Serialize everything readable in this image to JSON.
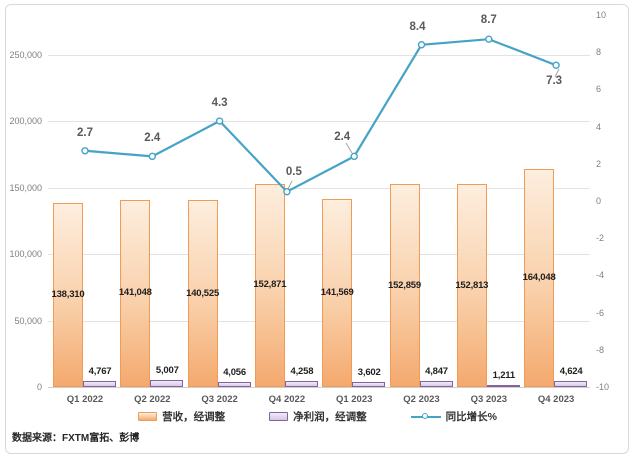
{
  "chart_data": {
    "type": "combo",
    "categories": [
      "Q1 2022",
      "Q2 2022",
      "Q3 2022",
      "Q4 2022",
      "Q1 2023",
      "Q2 2023",
      "Q3 2023",
      "Q4 2023"
    ],
    "series": [
      {
        "name": "营收，经调整",
        "type": "bar",
        "axis": "left",
        "values": [
          138310,
          141048,
          140525,
          152871,
          141569,
          152859,
          152813,
          164048
        ],
        "labels": [
          "138,310",
          "141,048",
          "140,525",
          "152,871",
          "141,569",
          "152,859",
          "152,813",
          "164,048"
        ],
        "border_color": "#F09C57",
        "fill_top": "#FDEEDE",
        "fill_bottom": "#F4A96E"
      },
      {
        "name": "净利润，经调整",
        "type": "bar",
        "axis": "left",
        "values": [
          4767,
          5007,
          4056,
          4258,
          3602,
          4847,
          1211,
          4624
        ],
        "labels": [
          "4,767",
          "5,007",
          "4,056",
          "4,258",
          "3,602",
          "4,847",
          "1,211",
          "4,624"
        ],
        "border_color": "#84619F",
        "fill_top": "#EFEAF7",
        "fill_bottom": "#D5C9E6"
      },
      {
        "name": "同比增长%",
        "type": "line",
        "axis": "right",
        "values": [
          2.7,
          2.4,
          4.3,
          0.5,
          2.4,
          8.4,
          8.7,
          7.3
        ],
        "labels": [
          "2.7",
          "2.4",
          "4.3",
          "0.5",
          "2.4",
          "8.4",
          "8.7",
          "7.3"
        ],
        "color": "#45A3C6"
      }
    ],
    "left_axis": {
      "min": 0,
      "max": 250000,
      "tick_step": 50000,
      "tick_labels": [
        "0",
        "50,000",
        "100,000",
        "150,000",
        "200,000",
        "250,000"
      ]
    },
    "right_axis": {
      "min": -10,
      "max": 10,
      "tick_step": 2,
      "tick_labels": [
        "-10",
        "-8",
        "-6",
        "-4",
        "-2",
        "0",
        "2",
        "4",
        "6",
        "8",
        "10"
      ]
    },
    "grid": true,
    "legend_position": "bottom",
    "title": ""
  },
  "source_note": "数据来源：FXTM富拓、彭博",
  "colors": {
    "grid": "#E2E2E2",
    "axis_text": "#7F7F7F",
    "category_text": "#595959",
    "bar_label": "#1F1F1F",
    "line_label": "#595959",
    "leader": "#A6A6A6",
    "frame_border": "#D9D9D9",
    "background": "#FFFFFF"
  }
}
